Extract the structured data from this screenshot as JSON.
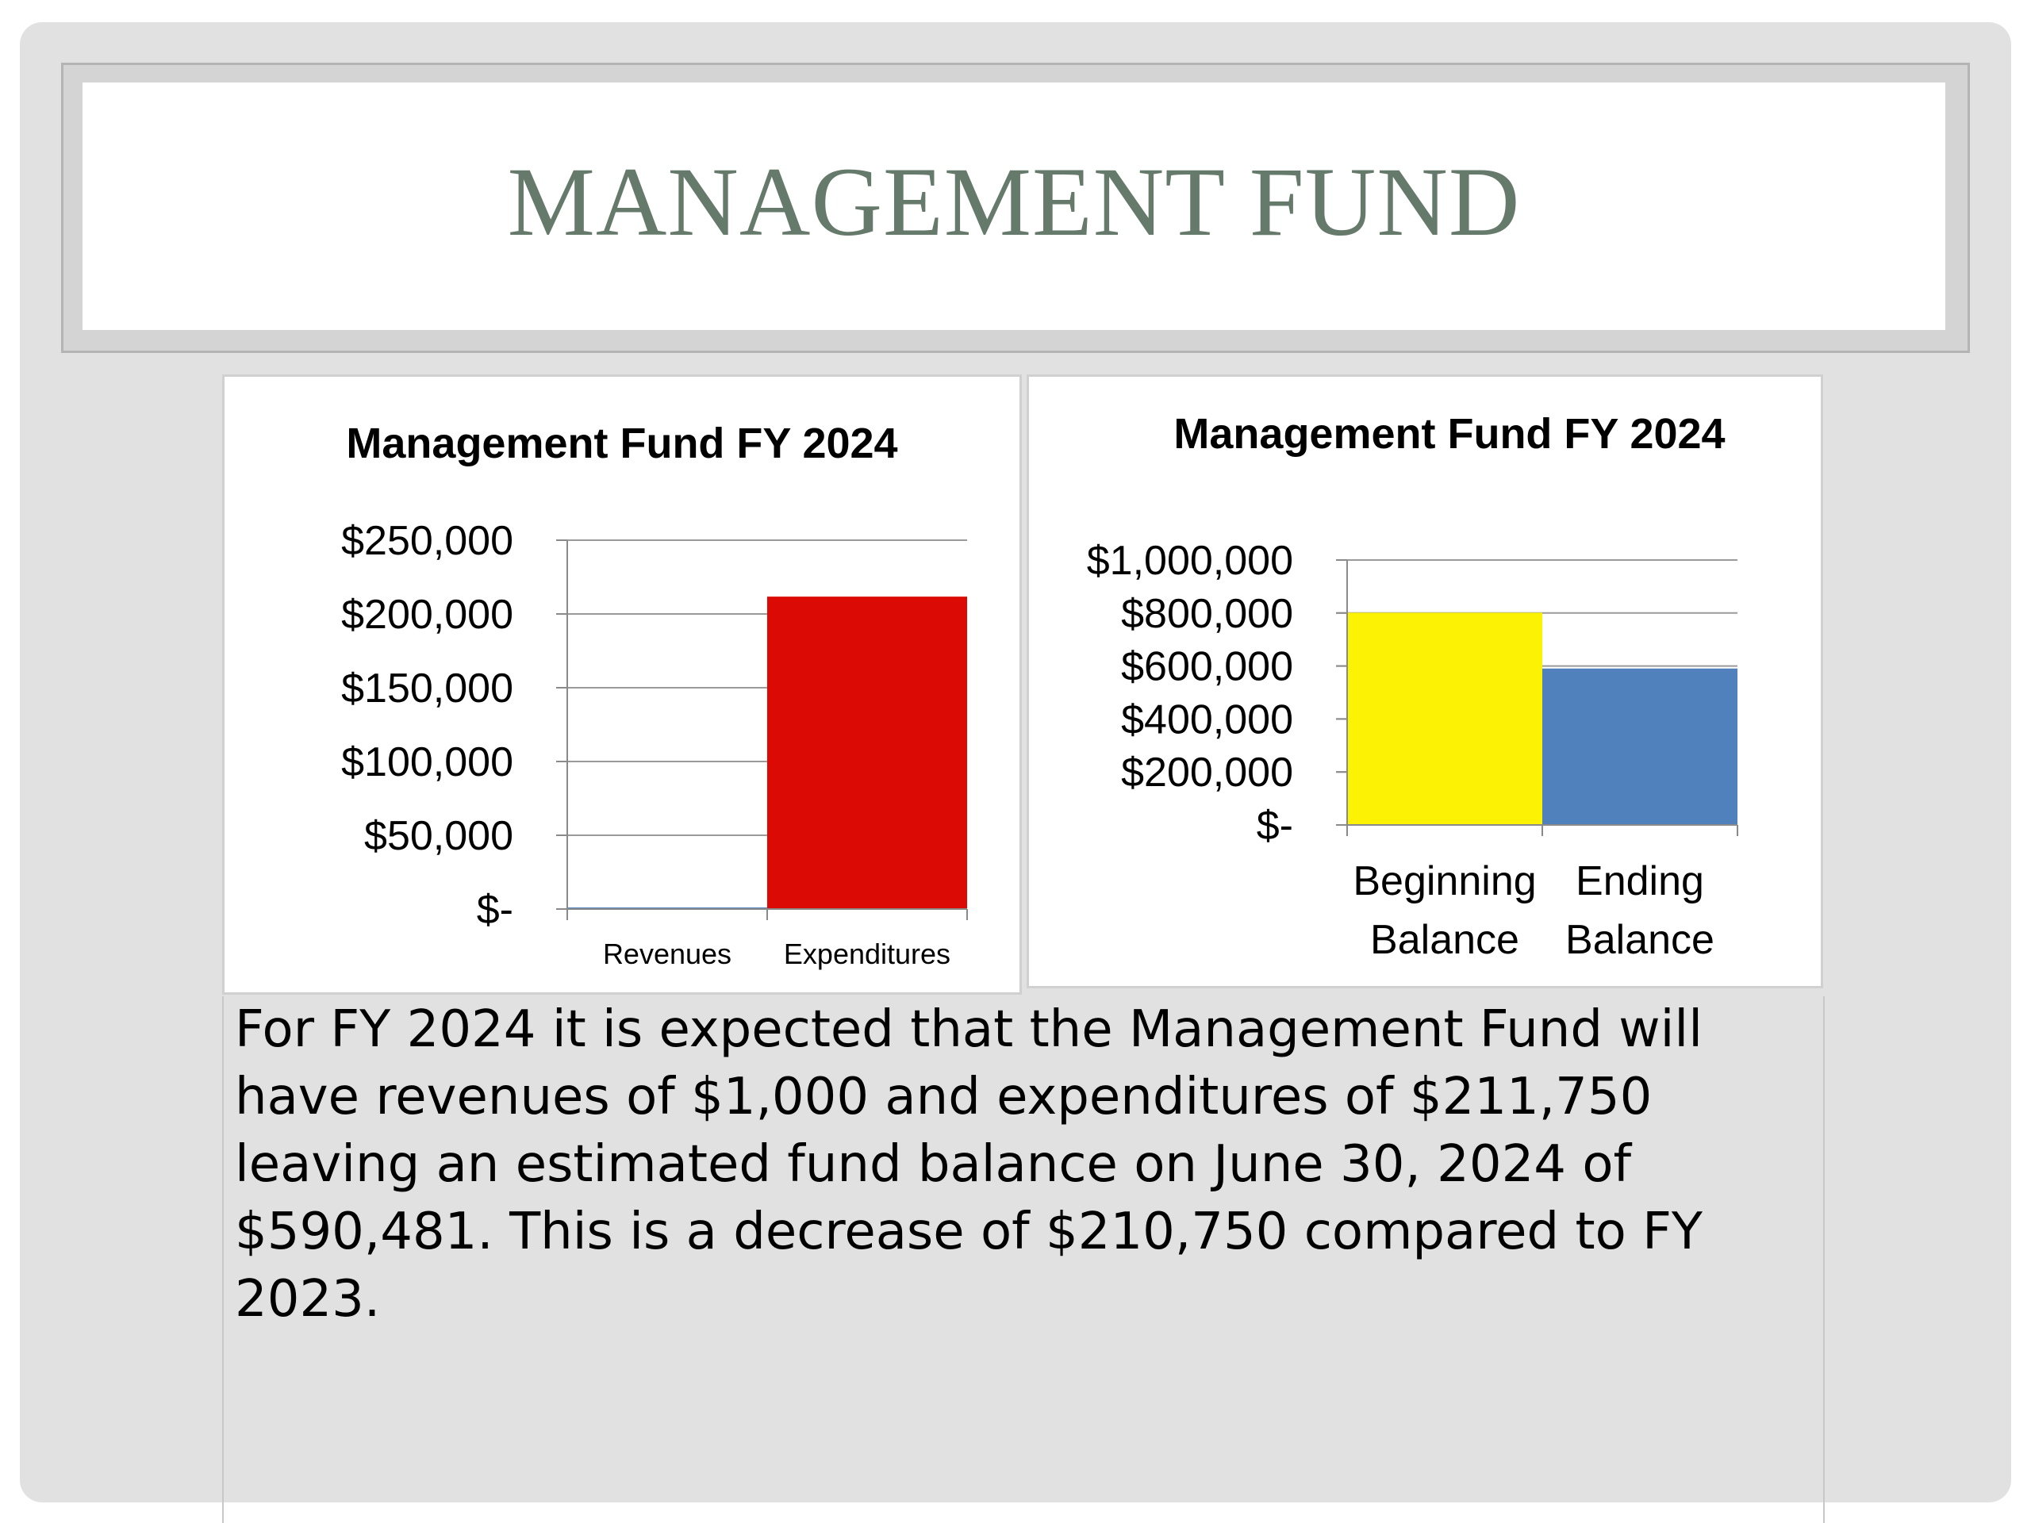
{
  "slide": {
    "title": "MANAGEMENT FUND",
    "body": "For FY 2024 it is expected that the Management Fund will have revenues of $1,000 and expenditures of $211,750 leaving an estimated fund balance on June 30, 2024 of $590,481.  This is a decrease of $210,750 compared to FY 2023."
  },
  "chart_data": [
    {
      "type": "bar",
      "title": "Management Fund FY 2024",
      "categories": [
        "Revenues",
        "Expenditures"
      ],
      "values": [
        1000,
        211750
      ],
      "colors": [
        "#4f81bd",
        "#dc0a04"
      ],
      "ylim": [
        0,
        250000
      ],
      "yticks": [
        0,
        50000,
        100000,
        150000,
        200000,
        250000
      ],
      "ytick_labels": [
        "$-",
        "$50,000",
        "$100,000",
        "$150,000",
        "$200,000",
        "$250,000"
      ],
      "grid": true,
      "legend": "none"
    },
    {
      "type": "bar",
      "title": "Management Fund FY 2024",
      "categories": [
        "Beginning Balance",
        "Ending Balance"
      ],
      "category_lines": [
        [
          "Beginning",
          "Balance"
        ],
        [
          "Ending",
          "Balance"
        ]
      ],
      "values": [
        801231,
        590481
      ],
      "colors": [
        "#fbf204",
        "#5181bd"
      ],
      "ylim": [
        0,
        1000000
      ],
      "yticks": [
        0,
        200000,
        400000,
        600000,
        800000,
        1000000
      ],
      "ytick_labels": [
        "$-",
        "$200,000",
        "$400,000",
        "$600,000",
        "$800,000",
        "$1,000,000"
      ],
      "grid": true,
      "legend": "none"
    }
  ]
}
